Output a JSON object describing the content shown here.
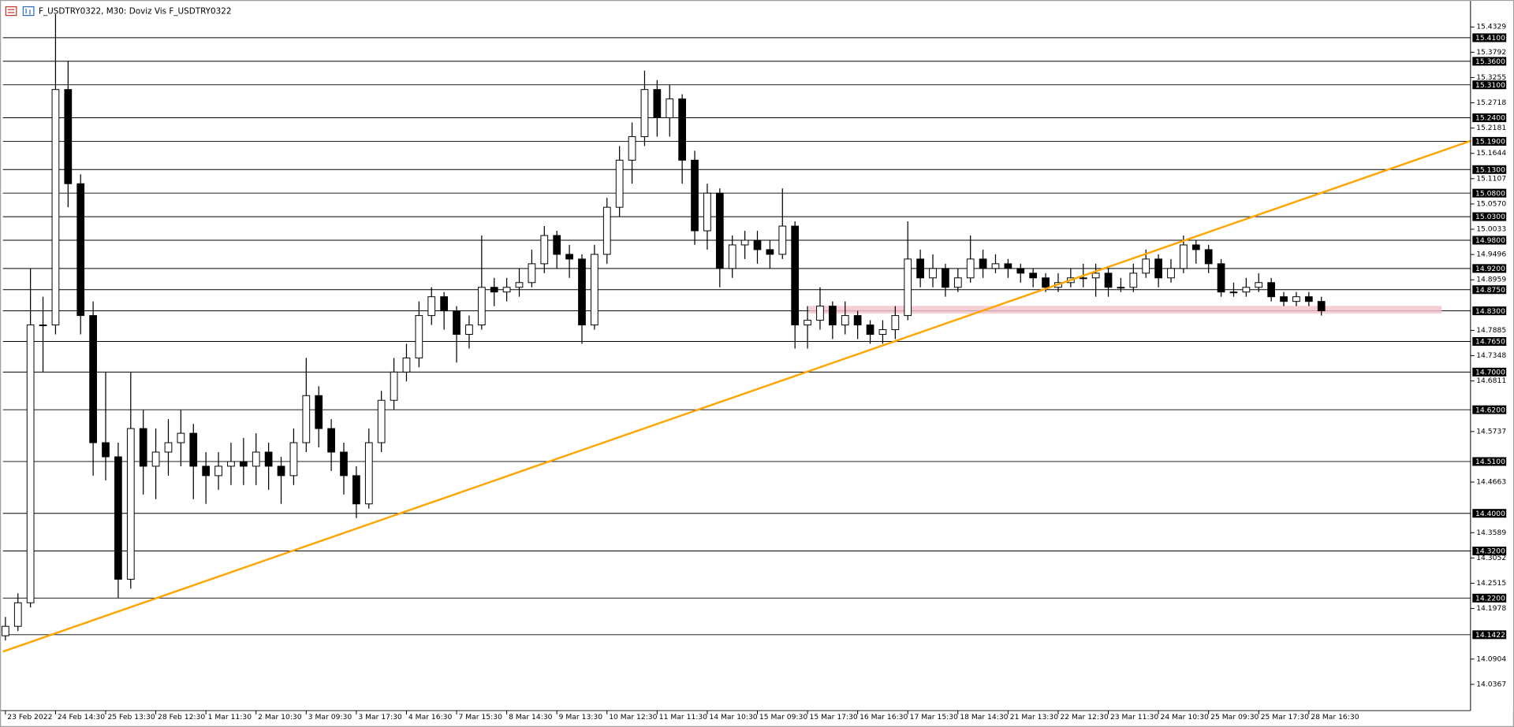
{
  "chart_data": {
    "type": "candlestick",
    "title": "F_USDTRY0322, M30: Doviz Vis F_USDTRY0322",
    "open": [
      14.14,
      14.16,
      14.21,
      14.8,
      14.8,
      15.3,
      15.1,
      14.82,
      14.55,
      14.52,
      14.26,
      14.58,
      14.5,
      14.53,
      14.55,
      14.57,
      14.5,
      14.48,
      14.5,
      14.51,
      14.5,
      14.53,
      14.5,
      14.48,
      14.55,
      14.65,
      14.58,
      14.53,
      14.48,
      14.42,
      14.55,
      14.64,
      14.7,
      14.73,
      14.82,
      14.86,
      14.83,
      14.78,
      14.8,
      14.88,
      14.87,
      14.88,
      14.89,
      14.93,
      14.99,
      14.95,
      14.94,
      14.8,
      14.95,
      15.05,
      15.15,
      15.2,
      15.3,
      15.24,
      15.28,
      15.15,
      15.0,
      15.08,
      14.92,
      14.97,
      14.98,
      14.96,
      14.95,
      15.01,
      14.8,
      14.81,
      14.84,
      14.8,
      14.82,
      14.8,
      14.78,
      14.79,
      14.82,
      14.94,
      14.9,
      14.92,
      14.88,
      14.9,
      14.94,
      14.92,
      14.93,
      14.92,
      14.91,
      14.9,
      14.88,
      14.89,
      14.9,
      14.9,
      14.91,
      14.88,
      14.88,
      14.91,
      14.94,
      14.9,
      14.92,
      14.97,
      14.96,
      14.93,
      14.87,
      14.87,
      14.88,
      14.89,
      14.86,
      14.85,
      14.86,
      14.85
    ],
    "high": [
      14.18,
      14.23,
      14.92,
      14.86,
      15.46,
      15.36,
      15.12,
      14.85,
      14.7,
      14.55,
      14.7,
      14.62,
      14.58,
      14.6,
      14.62,
      14.59,
      14.53,
      14.53,
      14.55,
      14.56,
      14.57,
      14.55,
      14.52,
      14.58,
      14.73,
      14.67,
      14.6,
      14.55,
      14.5,
      14.58,
      14.66,
      14.73,
      14.76,
      14.85,
      14.88,
      14.87,
      14.84,
      14.82,
      14.99,
      14.9,
      14.9,
      14.92,
      14.96,
      15.01,
      15.0,
      14.97,
      14.95,
      14.97,
      15.07,
      15.18,
      15.23,
      15.34,
      15.32,
      15.31,
      15.29,
      15.17,
      15.1,
      15.09,
      14.99,
      15.0,
      15.0,
      14.98,
      15.09,
      15.02,
      14.84,
      14.88,
      14.85,
      14.85,
      14.83,
      14.81,
      14.81,
      14.84,
      15.02,
      14.96,
      14.95,
      14.93,
      14.92,
      14.99,
      14.96,
      14.95,
      14.94,
      14.93,
      14.92,
      14.91,
      14.91,
      14.92,
      14.93,
      14.93,
      14.92,
      14.9,
      14.93,
      14.96,
      14.95,
      14.94,
      14.99,
      14.98,
      14.97,
      14.94,
      14.89,
      14.9,
      14.91,
      14.9,
      14.87,
      14.87,
      14.87,
      14.86
    ],
    "low": [
      14.13,
      14.15,
      14.2,
      14.7,
      14.78,
      15.05,
      14.78,
      14.48,
      14.47,
      14.22,
      14.24,
      14.44,
      14.43,
      14.48,
      14.5,
      14.43,
      14.42,
      14.45,
      14.46,
      14.46,
      14.46,
      14.45,
      14.42,
      14.46,
      14.53,
      14.54,
      14.49,
      14.44,
      14.39,
      14.41,
      14.53,
      14.62,
      14.68,
      14.71,
      14.8,
      14.79,
      14.72,
      14.75,
      14.79,
      14.84,
      14.85,
      14.86,
      14.88,
      14.91,
      14.92,
      14.9,
      14.76,
      14.79,
      14.93,
      15.03,
      15.1,
      15.18,
      15.2,
      15.2,
      15.1,
      14.97,
      14.96,
      14.88,
      14.9,
      14.94,
      14.93,
      14.92,
      14.94,
      14.75,
      14.75,
      14.79,
      14.77,
      14.78,
      14.77,
      14.76,
      14.76,
      14.77,
      14.81,
      14.88,
      14.88,
      14.86,
      14.87,
      14.89,
      14.9,
      14.91,
      14.9,
      14.89,
      14.88,
      14.87,
      14.87,
      14.88,
      14.88,
      14.86,
      14.86,
      14.87,
      14.87,
      14.9,
      14.88,
      14.89,
      14.91,
      14.93,
      14.91,
      14.86,
      14.86,
      14.86,
      14.87,
      14.85,
      14.84,
      14.84,
      14.84,
      14.82
    ],
    "close": [
      14.16,
      14.21,
      14.8,
      14.8,
      15.3,
      15.1,
      14.82,
      14.55,
      14.52,
      14.26,
      14.58,
      14.5,
      14.53,
      14.55,
      14.57,
      14.5,
      14.48,
      14.5,
      14.51,
      14.5,
      14.53,
      14.5,
      14.48,
      14.55,
      14.65,
      14.58,
      14.53,
      14.48,
      14.42,
      14.55,
      14.64,
      14.7,
      14.73,
      14.82,
      14.86,
      14.83,
      14.78,
      14.8,
      14.88,
      14.87,
      14.88,
      14.89,
      14.93,
      14.99,
      14.95,
      14.94,
      14.8,
      14.95,
      15.05,
      15.15,
      15.2,
      15.3,
      15.24,
      15.28,
      15.15,
      15.0,
      15.08,
      14.92,
      14.97,
      14.98,
      14.96,
      14.95,
      15.01,
      14.8,
      14.81,
      14.84,
      14.8,
      14.82,
      14.8,
      14.78,
      14.79,
      14.82,
      14.94,
      14.9,
      14.92,
      14.88,
      14.9,
      14.94,
      14.92,
      14.93,
      14.92,
      14.91,
      14.9,
      14.88,
      14.89,
      14.9,
      14.9,
      14.91,
      14.88,
      14.88,
      14.91,
      14.94,
      14.9,
      14.92,
      14.97,
      14.96,
      14.93,
      14.87,
      14.87,
      14.88,
      14.89,
      14.86,
      14.85,
      14.86,
      14.85,
      14.83
    ],
    "colors": {
      "up": "#ffffff",
      "down": "#000000",
      "wick": "#000000"
    },
    "xlim": [
      -0.2,
      116.9
    ],
    "xticks": [
      {
        "value": 0,
        "label": "23 Feb 2022"
      },
      {
        "value": 4,
        "label": "24 Feb 14:30"
      },
      {
        "value": 8,
        "label": "25 Feb 13:30"
      },
      {
        "value": 12,
        "label": "28 Feb 12:30"
      },
      {
        "value": 16,
        "label": "1 Mar 11:30"
      },
      {
        "value": 20,
        "label": "2 Mar 10:30"
      },
      {
        "value": 24,
        "label": "3 Mar 09:30"
      },
      {
        "value": 28,
        "label": "3 Mar 17:30"
      },
      {
        "value": 32,
        "label": "4 Mar 16:30"
      },
      {
        "value": 36,
        "label": "7 Mar 15:30"
      },
      {
        "value": 40,
        "label": "8 Mar 14:30"
      },
      {
        "value": 44,
        "label": "9 Mar 13:30"
      },
      {
        "value": 48,
        "label": "10 Mar 12:30"
      },
      {
        "value": 52,
        "label": "11 Mar 11:30"
      },
      {
        "value": 56,
        "label": "14 Mar 10:30"
      },
      {
        "value": 60,
        "label": "15 Mar 09:30"
      },
      {
        "value": 64,
        "label": "15 Mar 17:30"
      },
      {
        "value": 68,
        "label": "16 Mar 16:30"
      },
      {
        "value": 72,
        "label": "17 Mar 15:30"
      },
      {
        "value": 76,
        "label": "18 Mar 14:30"
      },
      {
        "value": 80,
        "label": "21 Mar 13:30"
      },
      {
        "value": 84,
        "label": "22 Mar 12:30"
      },
      {
        "value": 88,
        "label": "23 Mar 11:30"
      },
      {
        "value": 92,
        "label": "24 Mar 10:30"
      },
      {
        "value": 96,
        "label": "25 Mar 09:30"
      },
      {
        "value": 100,
        "label": "25 Mar 17:30"
      },
      {
        "value": 104,
        "label": "28 Mar 16:30"
      }
    ],
    "ylim": [
      13.981,
      15.484
    ],
    "yticks": [
      15.4329,
      15.3792,
      15.3255,
      15.2718,
      15.2181,
      15.1644,
      15.1107,
      {
        "value": 15.057,
        "label": "15.0570"
      },
      15.0033,
      14.9496,
      14.8959,
      14.7885,
      14.7348,
      14.6811,
      14.5737,
      14.4663,
      14.3589,
      14.3052,
      14.2515,
      14.1978,
      14.0904,
      14.0367
    ],
    "hlines": [
      {
        "value": 15.41,
        "label": "15.4100"
      },
      {
        "value": 15.36,
        "label": "15.3600"
      },
      {
        "value": 15.31,
        "label": "15.3100"
      },
      {
        "value": 15.24,
        "label": "15.2400"
      },
      {
        "value": 15.19,
        "label": "15.1900"
      },
      {
        "value": 15.13,
        "label": "15.1300"
      },
      {
        "value": 15.08,
        "label": "15.0800"
      },
      {
        "value": 15.03,
        "label": "15.0300"
      },
      {
        "value": 14.98,
        "label": "14.9800"
      },
      {
        "value": 14.92,
        "label": "14.9200"
      },
      {
        "value": 14.875,
        "label": "14.8750"
      },
      {
        "value": 14.83,
        "label": "14.8300"
      },
      {
        "value": 14.765,
        "label": "14.7650"
      },
      {
        "value": 14.7,
        "label": "14.7000"
      },
      {
        "value": 14.62,
        "label": "14.6200"
      },
      {
        "value": 14.51,
        "label": "14.5100"
      },
      {
        "value": 14.4,
        "label": "14.4000"
      },
      {
        "value": 14.32,
        "label": "14.3200"
      },
      {
        "value": 14.22,
        "label": "14.2200"
      },
      {
        "value": 14.1422,
        "label": "14.1422"
      }
    ],
    "hline_color": "#000000",
    "trendline": {
      "x": [
        -0.2,
        116.9
      ],
      "y": [
        14.1063,
        15.1909
      ],
      "color": "#ffa500"
    },
    "zone": {
      "x": [
        64.1,
        114.6
      ],
      "y": [
        14.8241,
        14.8405
      ],
      "color": "#f4c2cc"
    }
  }
}
